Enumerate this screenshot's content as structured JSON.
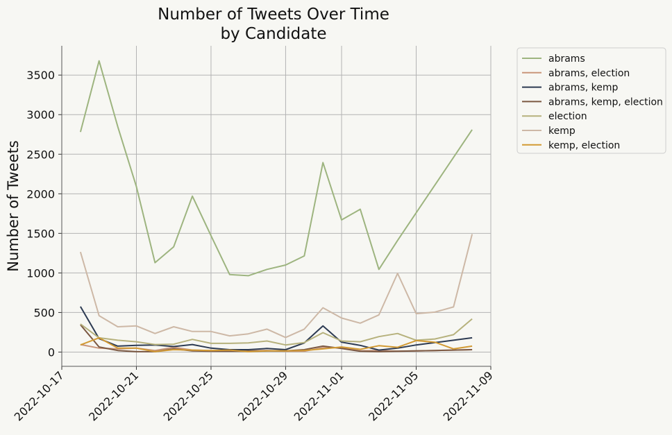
{
  "chart_data": {
    "type": "line",
    "title_lines": [
      "Number of Tweets Over Time",
      "by Candidate"
    ],
    "xlabel": "",
    "ylabel": "Number of Tweets",
    "x_ticks": [
      "2022-10-17",
      "2022-10-21",
      "2022-10-25",
      "2022-10-29",
      "2022-11-01",
      "2022-11-05",
      "2022-11-09"
    ],
    "y_ticks": [
      0,
      500,
      1000,
      1500,
      2000,
      2500,
      3000,
      3500
    ],
    "xlim": [
      "2022-10-17",
      "2022-11-09"
    ],
    "ylim": [
      -180,
      3870
    ],
    "grid": true,
    "legend_position": "outside-top-right",
    "x": [
      "2022-10-18",
      "2022-10-19",
      "2022-10-20",
      "2022-10-21",
      "2022-10-22",
      "2022-10-23",
      "2022-10-24",
      "2022-10-25",
      "2022-10-26",
      "2022-10-27",
      "2022-10-28",
      "2022-10-29",
      "2022-10-30",
      "2022-10-31",
      "2022-11-01",
      "2022-11-02",
      "2022-11-03",
      "2022-11-04",
      "2022-11-05",
      "2022-11-06",
      "2022-11-07",
      "2022-11-08"
    ],
    "series": [
      {
        "name": "abrams",
        "color": "#9db47f",
        "values": [
          2780,
          3680,
          2850,
          2090,
          1130,
          1330,
          1970,
          1470,
          980,
          965,
          1045,
          1100,
          1215,
          2395,
          1670,
          1805,
          1045,
          1410,
          1760,
          2110,
          2460,
          2810
        ]
      },
      {
        "name": "abrams, election",
        "color": "#c9967b",
        "values": [
          95,
          50,
          40,
          50,
          20,
          60,
          25,
          20,
          15,
          15,
          20,
          10,
          10,
          55,
          55,
          15,
          20,
          10,
          15,
          20,
          25,
          30
        ]
      },
      {
        "name": "abrams, kemp",
        "color": "#2c3a52",
        "values": [
          575,
          170,
          75,
          85,
          90,
          70,
          95,
          50,
          30,
          30,
          45,
          30,
          115,
          330,
          125,
          85,
          25,
          50,
          90,
          120,
          150,
          180
        ]
      },
      {
        "name": "abrams, kemp, election",
        "color": "#7b5842",
        "values": [
          345,
          65,
          20,
          5,
          5,
          40,
          15,
          10,
          10,
          10,
          15,
          15,
          30,
          75,
          45,
          10,
          5,
          10,
          15,
          20,
          25,
          30
        ]
      },
      {
        "name": "election",
        "color": "#b6b17c",
        "values": [
          355,
          180,
          150,
          130,
          95,
          100,
          160,
          110,
          110,
          115,
          140,
          90,
          120,
          245,
          140,
          130,
          195,
          235,
          150,
          165,
          220,
          420
        ]
      },
      {
        "name": "kemp",
        "color": "#cdb8a6",
        "values": [
          1265,
          460,
          320,
          330,
          235,
          320,
          260,
          260,
          205,
          230,
          290,
          185,
          290,
          560,
          430,
          365,
          470,
          995,
          485,
          505,
          570,
          1490
        ]
      },
      {
        "name": "kemp, election",
        "color": "#d29a33",
        "values": [
          90,
          180,
          50,
          50,
          5,
          30,
          25,
          20,
          25,
          5,
          15,
          15,
          20,
          40,
          65,
          35,
          80,
          60,
          145,
          125,
          40,
          75
        ]
      }
    ]
  }
}
